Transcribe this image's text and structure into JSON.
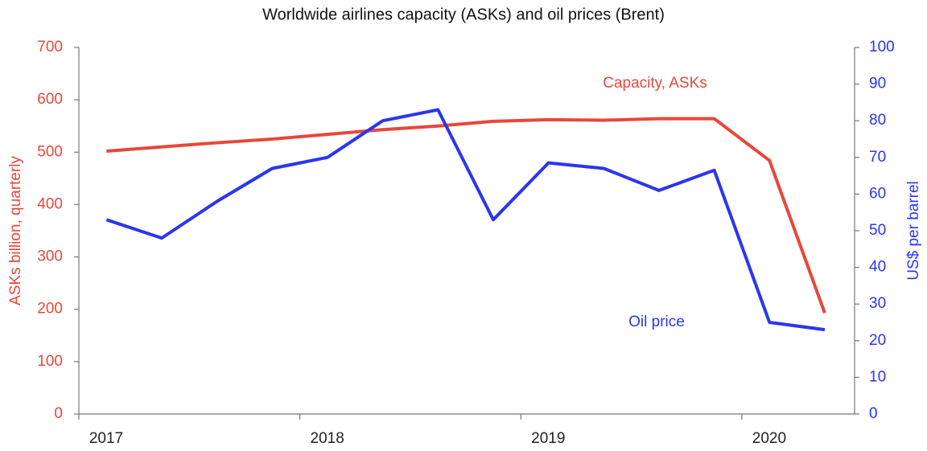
{
  "chart_data": {
    "type": "line",
    "title": "Worldwide airlines capacity (ASKs) and oil prices (Brent)",
    "ylabel": "ASKs billion, quarterly",
    "y2label": "US$ per barrel",
    "x": [
      2017.125,
      2017.375,
      2017.625,
      2017.875,
      2018.125,
      2018.375,
      2018.625,
      2018.875,
      2019.125,
      2019.375,
      2019.625,
      2019.875,
      2020.125,
      2020.375
    ],
    "xlim": [
      2017,
      2020.51
    ],
    "xticks": [
      2017,
      2018,
      2019,
      2020
    ],
    "ylim": [
      0,
      700
    ],
    "yticks": [
      0,
      100,
      200,
      300,
      400,
      500,
      600,
      700
    ],
    "y2lim": [
      0,
      100
    ],
    "y2ticks": [
      0,
      10,
      20,
      30,
      40,
      50,
      60,
      70,
      80,
      90,
      100
    ],
    "series": [
      {
        "name": "Capacity, ASKs",
        "color": "#e8473a",
        "values": [
          502,
          510,
          518,
          525,
          534,
          543,
          550,
          559,
          562,
          561,
          564,
          564,
          484,
          193
        ]
      },
      {
        "name": "Oil price",
        "color": "#2b35f0",
        "axis": "y2",
        "values": [
          53,
          48,
          58,
          67,
          70,
          80,
          83,
          53,
          68.5,
          67,
          61,
          66.5,
          25,
          23
        ]
      }
    ]
  }
}
